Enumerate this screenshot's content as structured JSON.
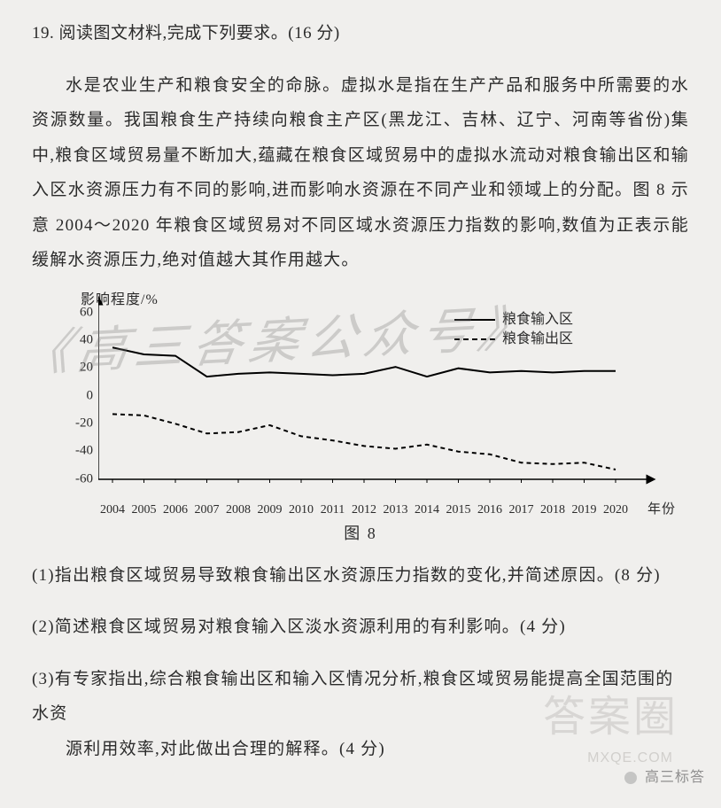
{
  "question_number": "19.",
  "question_title": "阅读图文材料,完成下列要求。(16 分)",
  "paragraph": "水是农业生产和粮食安全的命脉。虚拟水是指在生产产品和服务中所需要的水资源数量。我国粮食生产持续向粮食主产区(黑龙江、吉林、辽宁、河南等省份)集中,粮食区域贸易量不断加大,蕴藏在粮食区域贸易中的虚拟水流动对粮食输出区和输入区水资源压力有不同的影响,进而影响水资源在不同产业和领域上的分配。图 8 示意 2004～2020 年粮食区域贸易对不同区域水资源压力指数的影响,数值为正表示能缓解水资源压力,绝对值越大其作用越大。",
  "chart": {
    "type": "line",
    "y_label": "影响程度/%",
    "x_label": "年份",
    "categories": [
      "2004",
      "2005",
      "2006",
      "2007",
      "2008",
      "2009",
      "2010",
      "2011",
      "2012",
      "2013",
      "2014",
      "2015",
      "2016",
      "2017",
      "2018",
      "2019",
      "2020"
    ],
    "series": [
      {
        "name": "粮食输入区",
        "style": "solid",
        "values": [
          35,
          30,
          29,
          14,
          16,
          17,
          16,
          15,
          16,
          21,
          14,
          20,
          17,
          18,
          17,
          18,
          18
        ]
      },
      {
        "name": "粮食输出区",
        "style": "dashed",
        "values": [
          -13,
          -14,
          -20,
          -27,
          -26,
          -21,
          -29,
          -32,
          -36,
          -38,
          -35,
          -40,
          -42,
          -48,
          -49,
          -48,
          -53
        ]
      }
    ],
    "y_min": -60,
    "y_max": 60,
    "y_step": 20,
    "y_ticks": [
      60,
      40,
      20,
      0,
      -20,
      -40,
      -60
    ],
    "line_color": "#000000",
    "axis_color": "#000000",
    "background_color": "#f0efed",
    "line_width": 2,
    "legend": {
      "items": [
        "粮食输入区",
        "粮食输出区"
      ]
    }
  },
  "figure_caption": "图 8",
  "subquestions": {
    "q1": "(1)指出粮食区域贸易导致粮食输出区水资源压力指数的变化,并简述原因。(8 分)",
    "q2": "(2)简述粮食区域贸易对粮食输入区淡水资源利用的有利影响。(4 分)",
    "q3_line1": "(3)有专家指出,综合粮食输出区和输入区情况分析,粮食区域贸易能提高全国范围的水资",
    "q3_line2": "源利用效率,对此做出合理的解释。(4 分)"
  },
  "watermarks": {
    "main": "《高三答案公众号》",
    "stamp": "答案圈",
    "url": "MXQE.COM",
    "credit": "高三标答"
  }
}
